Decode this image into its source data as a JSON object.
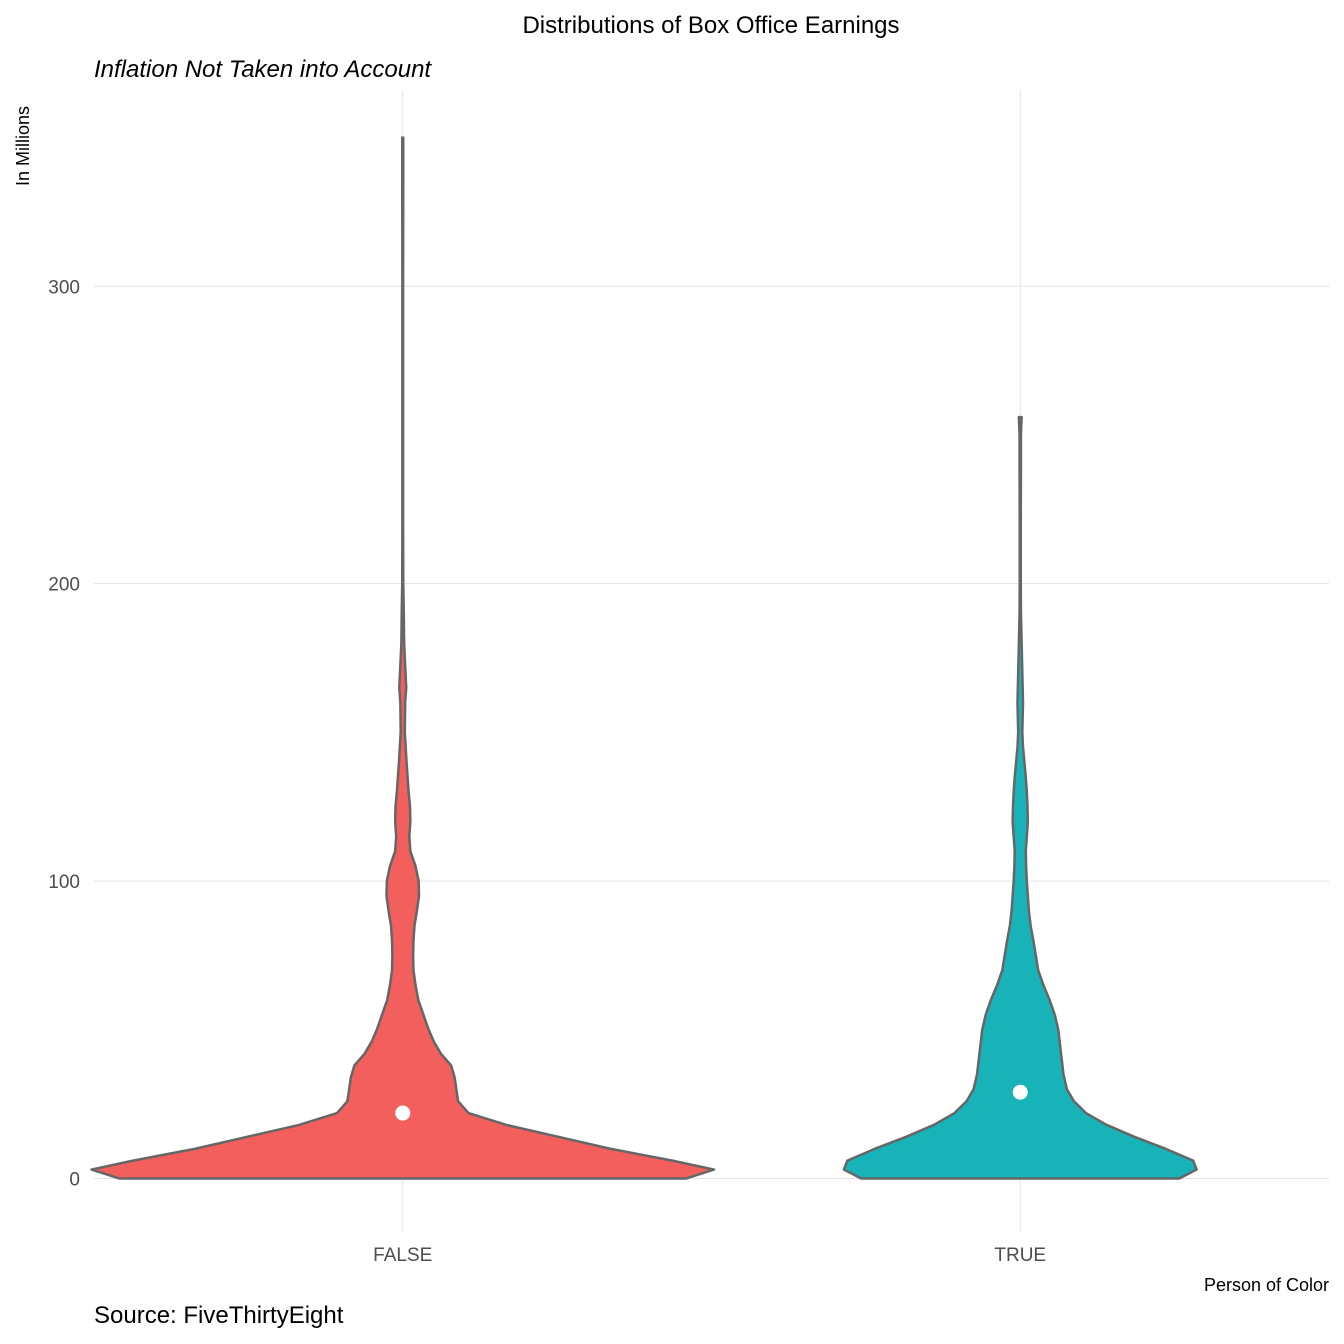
{
  "chart_data": {
    "type": "violin",
    "title": "Distributions of Box Office Earnings",
    "subtitle": "Inflation Not Taken into Account",
    "ylabel": "In Millions",
    "xlabel": "Person of Color",
    "caption": "Source: FiveThirtyEight",
    "categories": [
      "FALSE",
      "TRUE"
    ],
    "ylim": [
      -18,
      366
    ],
    "yticks": [
      0,
      100,
      200,
      300
    ],
    "grid": true,
    "colors": {
      "FALSE": "#F25F5C",
      "TRUE": "#17B3B9",
      "outline": "#666666",
      "median_point": "#ffffff"
    },
    "series": [
      {
        "category": "FALSE",
        "median": 22,
        "max": 350,
        "density": [
          [
            0,
            0.82
          ],
          [
            3,
            0.9
          ],
          [
            6,
            0.78
          ],
          [
            10,
            0.6
          ],
          [
            14,
            0.45
          ],
          [
            18,
            0.3
          ],
          [
            22,
            0.19
          ],
          [
            26,
            0.16
          ],
          [
            30,
            0.155
          ],
          [
            34,
            0.15
          ],
          [
            38,
            0.14
          ],
          [
            42,
            0.11
          ],
          [
            46,
            0.09
          ],
          [
            50,
            0.075
          ],
          [
            55,
            0.06
          ],
          [
            60,
            0.045
          ],
          [
            65,
            0.037
          ],
          [
            70,
            0.031
          ],
          [
            75,
            0.03
          ],
          [
            80,
            0.031
          ],
          [
            85,
            0.034
          ],
          [
            90,
            0.041
          ],
          [
            95,
            0.047
          ],
          [
            100,
            0.046
          ],
          [
            105,
            0.037
          ],
          [
            110,
            0.022
          ],
          [
            115,
            0.019
          ],
          [
            120,
            0.022
          ],
          [
            125,
            0.021
          ],
          [
            130,
            0.017
          ],
          [
            140,
            0.011
          ],
          [
            150,
            0.006
          ],
          [
            160,
            0.007
          ],
          [
            165,
            0.01
          ],
          [
            170,
            0.008
          ],
          [
            180,
            0.004
          ],
          [
            190,
            0.003
          ],
          [
            200,
            0.0015
          ],
          [
            220,
            0.001
          ],
          [
            250,
            0.001
          ],
          [
            300,
            0.001
          ],
          [
            340,
            0.0015
          ],
          [
            350,
            0.0015
          ]
        ]
      },
      {
        "category": "TRUE",
        "median": 29,
        "max": 256,
        "density": [
          [
            0,
            0.46
          ],
          [
            3,
            0.51
          ],
          [
            6,
            0.5
          ],
          [
            10,
            0.42
          ],
          [
            14,
            0.33
          ],
          [
            18,
            0.25
          ],
          [
            22,
            0.19
          ],
          [
            26,
            0.155
          ],
          [
            30,
            0.135
          ],
          [
            35,
            0.125
          ],
          [
            40,
            0.12
          ],
          [
            45,
            0.115
          ],
          [
            50,
            0.11
          ],
          [
            55,
            0.1
          ],
          [
            60,
            0.085
          ],
          [
            65,
            0.067
          ],
          [
            70,
            0.052
          ],
          [
            75,
            0.045
          ],
          [
            80,
            0.038
          ],
          [
            85,
            0.03
          ],
          [
            90,
            0.025
          ],
          [
            95,
            0.022
          ],
          [
            100,
            0.019
          ],
          [
            105,
            0.017
          ],
          [
            110,
            0.016
          ],
          [
            115,
            0.019
          ],
          [
            120,
            0.022
          ],
          [
            125,
            0.021
          ],
          [
            130,
            0.019
          ],
          [
            135,
            0.016
          ],
          [
            140,
            0.012
          ],
          [
            145,
            0.008
          ],
          [
            150,
            0.006
          ],
          [
            155,
            0.007
          ],
          [
            160,
            0.008
          ],
          [
            165,
            0.007
          ],
          [
            170,
            0.006
          ],
          [
            180,
            0.004
          ],
          [
            190,
            0.002
          ],
          [
            200,
            0.0015
          ],
          [
            220,
            0.0015
          ],
          [
            240,
            0.002
          ],
          [
            250,
            0.002
          ],
          [
            256,
            0.004
          ]
        ]
      }
    ]
  }
}
